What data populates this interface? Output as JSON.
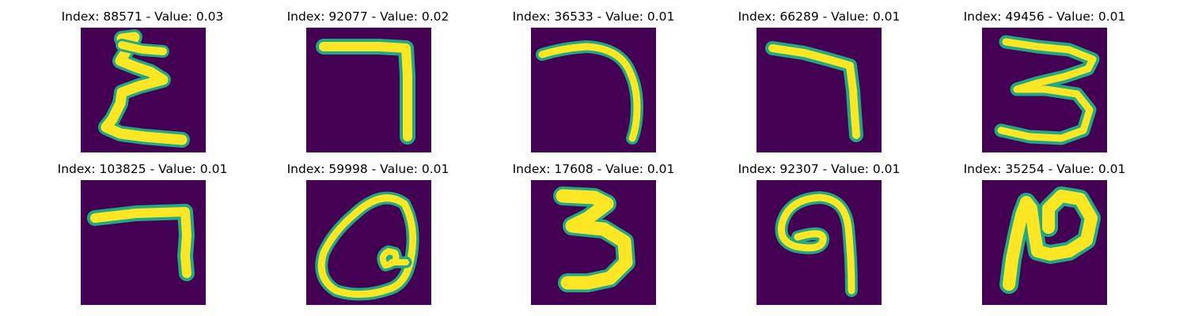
{
  "figure": {
    "background": "#ffffff",
    "image_background_color": "#440154",
    "stroke_color": "#fde725",
    "stroke_edge_color": "#22a884",
    "panels": [
      {
        "title": "Index: 88571 - Value: 0.03",
        "glyph": "E-like"
      },
      {
        "title": "Index: 92077 - Value: 0.02",
        "glyph": "seven"
      },
      {
        "title": "Index: 36533 - Value: 0.01",
        "glyph": "seven-curved"
      },
      {
        "title": "Index: 66289 - Value: 0.01",
        "glyph": "seven"
      },
      {
        "title": "Index: 49456 - Value: 0.01",
        "glyph": "three"
      },
      {
        "title": "Index: 103825 - Value: 0.01",
        "glyph": "seven"
      },
      {
        "title": "Index: 59998 - Value: 0.01",
        "glyph": "loop"
      },
      {
        "title": "Index: 17608 - Value: 0.01",
        "glyph": "three"
      },
      {
        "title": "Index: 92307 - Value: 0.01",
        "glyph": "nine"
      },
      {
        "title": "Index: 35254 - Value: 0.01",
        "glyph": "n-loop"
      }
    ]
  }
}
